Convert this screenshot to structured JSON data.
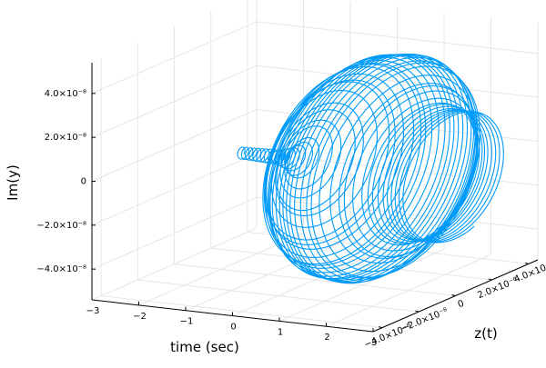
{
  "chart_data": {
    "type": "line3d",
    "title": "",
    "xlabel": "time (sec)",
    "ylabel": "z(t)",
    "zlabel": "Im(y)",
    "xlim": [
      -3,
      3
    ],
    "ylim": [
      -4.5e-08,
      4.5e-08
    ],
    "zlim": [
      -5.4e-08,
      5.4e-08
    ],
    "x_ticks": [
      {
        "value": -3,
        "label": "−3"
      },
      {
        "value": -2,
        "label": "−2"
      },
      {
        "value": -1,
        "label": "−1"
      },
      {
        "value": 0,
        "label": "0"
      },
      {
        "value": 1,
        "label": "1"
      },
      {
        "value": 2,
        "label": "2"
      },
      {
        "value": 3,
        "label": "3"
      }
    ],
    "y_ticks": [
      {
        "value": -4e-08,
        "label": "−4.0×10⁻⁸"
      },
      {
        "value": -2e-08,
        "label": "−2.0×10⁻⁸"
      },
      {
        "value": 0,
        "label": "0"
      },
      {
        "value": 2e-08,
        "label": "2.0×10⁻⁸"
      },
      {
        "value": 4e-08,
        "label": "4.0×10⁻⁸"
      }
    ],
    "z_ticks": [
      {
        "value": -4e-08,
        "label": "−4.0×10⁻⁸"
      },
      {
        "value": -2e-08,
        "label": "−2.0×10⁻⁸"
      },
      {
        "value": 0,
        "label": "0"
      },
      {
        "value": 2e-08,
        "label": "2.0×10⁻⁸"
      },
      {
        "value": 4e-08,
        "label": "4.0×10⁻⁸"
      }
    ],
    "grid": true,
    "legend": "none",
    "series_color": "#009af9",
    "series": [
      {
        "curve": "helix y = r(t)·cos(ωt), z = r(t)·sin(ωt)",
        "t_range": [
          -1.6,
          3.0
        ],
        "angular_frequency": 75,
        "radius_profile": {
          "t": [
            -1.6,
            -0.8,
            -0.5,
            -0.3,
            -0.1,
            0.0,
            0.3,
            0.6,
            1.0,
            1.4,
            1.7,
            2.0,
            2.3,
            2.6,
            3.0
          ],
          "r": [
            2.5e-09,
            3e-09,
            4.5e-09,
            7.5e-09,
            1.6e-08,
            2.2e-08,
            3.5e-08,
            4.3e-08,
            4.8e-08,
            4.9e-08,
            4.6e-08,
            3.7e-08,
            3e-08,
            2.8e-08,
            2.8e-08
          ]
        }
      }
    ]
  }
}
